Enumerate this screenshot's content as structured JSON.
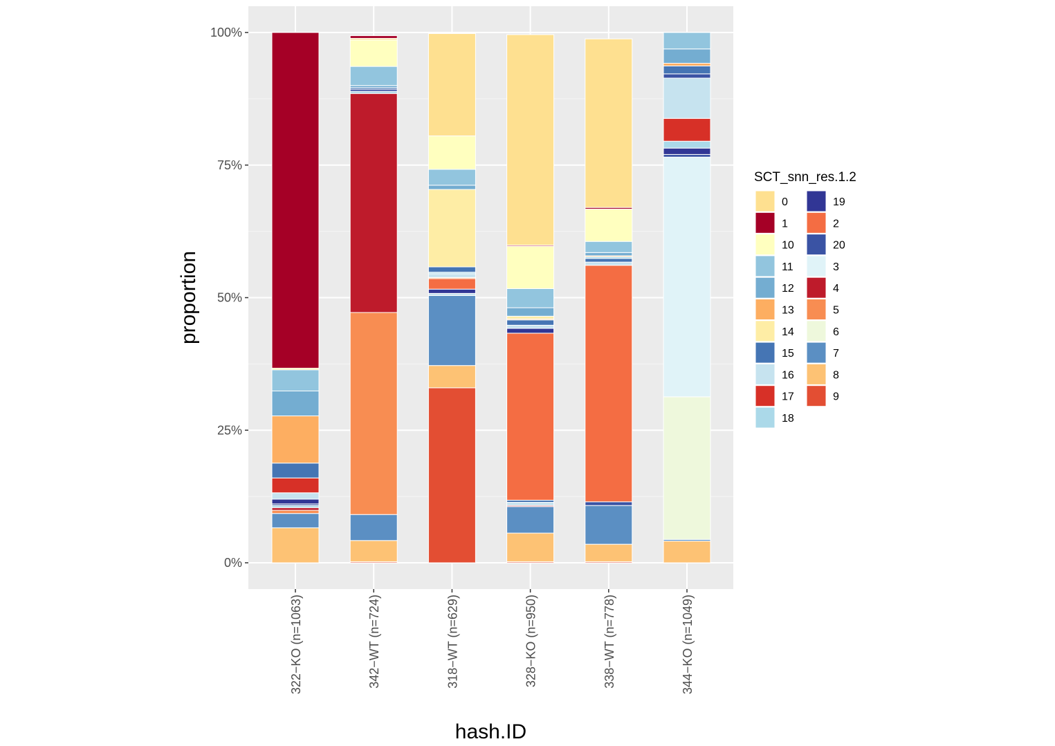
{
  "chart_data": {
    "type": "bar",
    "stacked": true,
    "xlabel": "hash.ID",
    "ylabel": "proportion",
    "ylim": [
      0,
      1
    ],
    "yticks": [
      0,
      0.25,
      0.5,
      0.75,
      1.0
    ],
    "ytick_labels": [
      "0%",
      "25%",
      "50%",
      "75%",
      "100%"
    ],
    "categories": [
      "322−KO (n=1063)",
      "342−WT (n=724)",
      "318−WT (n=629)",
      "328−KO (n=950)",
      "338−WT (n=778)",
      "344−KO (n=1049)"
    ],
    "legend": {
      "title": "SCT_snn_res.1.2",
      "position": "right",
      "keys": [
        "0",
        "1",
        "10",
        "11",
        "12",
        "13",
        "14",
        "15",
        "16",
        "17",
        "18",
        "19",
        "2",
        "20",
        "3",
        "4",
        "5",
        "6",
        "7",
        "8",
        "9"
      ]
    },
    "colors": {
      "0": "#FEE090",
      "1": "#A50026",
      "10": "#FFFFBF",
      "11": "#92C5DE",
      "12": "#74ADD1",
      "13": "#FDAE61",
      "14": "#FEEDA5",
      "15": "#4575B4",
      "16": "#C6E3EF",
      "17": "#D73027",
      "18": "#ABD9E9",
      "19": "#313695",
      "2": "#F46D43",
      "20": "#3A53A4",
      "3": "#E0F3F8",
      "4": "#BE1B2B",
      "5": "#F88D52",
      "6": "#EEF8DC",
      "7": "#5B8FC3",
      "8": "#FDC274",
      "9": "#E34E33"
    },
    "series": [
      {
        "name": "322−KO (n=1063)",
        "segments": [
          {
            "cluster": "8",
            "value": 0.066
          },
          {
            "cluster": "7",
            "value": 0.027
          },
          {
            "cluster": "5",
            "value": 0.006
          },
          {
            "cluster": "4",
            "value": 0.005
          },
          {
            "cluster": "18",
            "value": 0.004
          },
          {
            "cluster": "20",
            "value": 0.003
          },
          {
            "cluster": "19",
            "value": 0.009
          },
          {
            "cluster": "16",
            "value": 0.012
          },
          {
            "cluster": "17",
            "value": 0.028
          },
          {
            "cluster": "15",
            "value": 0.028
          },
          {
            "cluster": "13",
            "value": 0.089
          },
          {
            "cluster": "12",
            "value": 0.047
          },
          {
            "cluster": "11",
            "value": 0.04
          },
          {
            "cluster": "14",
            "value": 0.003
          },
          {
            "cluster": "1",
            "value": 0.633
          }
        ]
      },
      {
        "name": "342−WT (n=724)",
        "segments": [
          {
            "cluster": "9",
            "value": 0.002
          },
          {
            "cluster": "8",
            "value": 0.04
          },
          {
            "cluster": "7",
            "value": 0.049
          },
          {
            "cluster": "5",
            "value": 0.381
          },
          {
            "cluster": "4",
            "value": 0.413
          },
          {
            "cluster": "18",
            "value": 0.004
          },
          {
            "cluster": "20",
            "value": 0.004
          },
          {
            "cluster": "15",
            "value": 0.003
          },
          {
            "cluster": "12",
            "value": 0.004
          },
          {
            "cluster": "11",
            "value": 0.036
          },
          {
            "cluster": "10",
            "value": 0.05
          },
          {
            "cluster": "0",
            "value": 0.003
          },
          {
            "cluster": "1",
            "value": 0.005
          }
        ]
      },
      {
        "name": "318−WT (n=629)",
        "segments": [
          {
            "cluster": "9",
            "value": 0.33
          },
          {
            "cluster": "8",
            "value": 0.042
          },
          {
            "cluster": "7",
            "value": 0.132
          },
          {
            "cluster": "16",
            "value": 0.004
          },
          {
            "cluster": "19",
            "value": 0.008
          },
          {
            "cluster": "2",
            "value": 0.02
          },
          {
            "cluster": "13",
            "value": 0.002
          },
          {
            "cluster": "16",
            "value": 0.007
          },
          {
            "cluster": "18",
            "value": 0.003
          },
          {
            "cluster": "15",
            "value": 0.01
          },
          {
            "cluster": "14",
            "value": 0.146
          },
          {
            "cluster": "12",
            "value": 0.008
          },
          {
            "cluster": "11",
            "value": 0.03
          },
          {
            "cluster": "10",
            "value": 0.063
          },
          {
            "cluster": "0",
            "value": 0.193
          }
        ]
      },
      {
        "name": "328−KO (n=950)",
        "segments": [
          {
            "cluster": "9",
            "value": 0.002
          },
          {
            "cluster": "8",
            "value": 0.054
          },
          {
            "cluster": "7",
            "value": 0.05
          },
          {
            "cluster": "4",
            "value": 0.002
          },
          {
            "cluster": "16",
            "value": 0.006
          },
          {
            "cluster": "15",
            "value": 0.004
          },
          {
            "cluster": "2",
            "value": 0.315
          },
          {
            "cluster": "19",
            "value": 0.009
          },
          {
            "cluster": "16",
            "value": 0.006
          },
          {
            "cluster": "15",
            "value": 0.01
          },
          {
            "cluster": "13",
            "value": 0.002
          },
          {
            "cluster": "14",
            "value": 0.005
          },
          {
            "cluster": "12",
            "value": 0.016
          },
          {
            "cluster": "11",
            "value": 0.036
          },
          {
            "cluster": "10",
            "value": 0.08
          },
          {
            "cluster": "4",
            "value": 0.002
          },
          {
            "cluster": "0",
            "value": 0.397
          }
        ]
      },
      {
        "name": "338−WT (n=778)",
        "segments": [
          {
            "cluster": "9",
            "value": 0.002
          },
          {
            "cluster": "8",
            "value": 0.033
          },
          {
            "cluster": "7",
            "value": 0.073
          },
          {
            "cluster": "20",
            "value": 0.007
          },
          {
            "cluster": "2",
            "value": 0.446
          },
          {
            "cluster": "16",
            "value": 0.006
          },
          {
            "cluster": "15",
            "value": 0.007
          },
          {
            "cluster": "18",
            "value": 0.003
          },
          {
            "cluster": "13",
            "value": 0.002
          },
          {
            "cluster": "12",
            "value": 0.006
          },
          {
            "cluster": "11",
            "value": 0.021
          },
          {
            "cluster": "10",
            "value": 0.061
          },
          {
            "cluster": "1",
            "value": 0.003
          },
          {
            "cluster": "0",
            "value": 0.318
          }
        ]
      },
      {
        "name": "344−KO (n=1049)",
        "segments": [
          {
            "cluster": "8",
            "value": 0.041
          },
          {
            "cluster": "7",
            "value": 0.003
          },
          {
            "cluster": "6",
            "value": 0.269
          },
          {
            "cluster": "3",
            "value": 0.452
          },
          {
            "cluster": "20",
            "value": 0.005
          },
          {
            "cluster": "19",
            "value": 0.012
          },
          {
            "cluster": "18",
            "value": 0.013
          },
          {
            "cluster": "17",
            "value": 0.043
          },
          {
            "cluster": "16",
            "value": 0.076
          },
          {
            "cluster": "20",
            "value": 0.008
          },
          {
            "cluster": "15",
            "value": 0.015
          },
          {
            "cluster": "13",
            "value": 0.005
          },
          {
            "cluster": "12",
            "value": 0.027
          },
          {
            "cluster": "11",
            "value": 0.031
          }
        ]
      }
    ]
  }
}
